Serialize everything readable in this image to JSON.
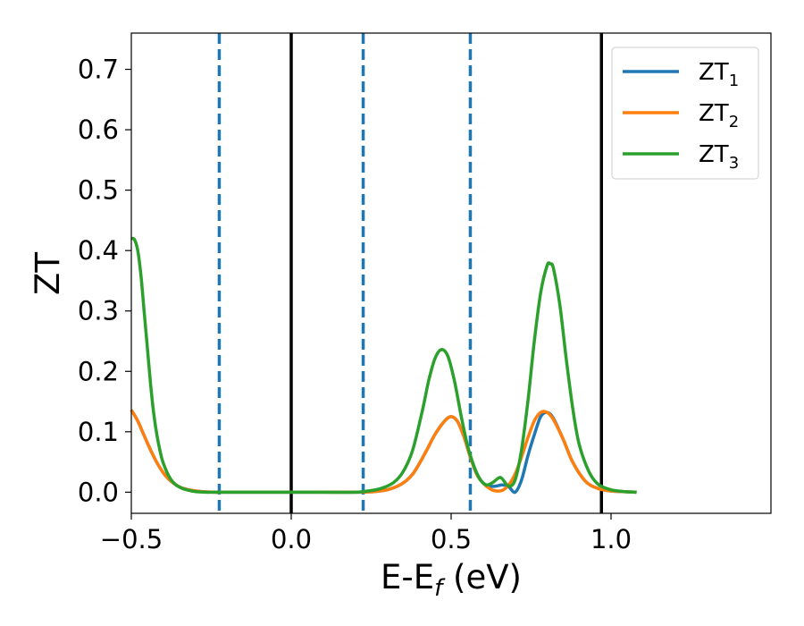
{
  "chart_data": {
    "type": "line",
    "xlabel": "E-E",
    "xlabel_sub": "f",
    "xlabel_unit": " (eV)",
    "ylabel": "ZT",
    "xlim": [
      -0.5,
      1.5
    ],
    "ylim": [
      -0.035,
      0.76
    ],
    "x_ticks": [
      {
        "value": -0.5,
        "label": "−0.5"
      },
      {
        "value": 0.0,
        "label": "0.0"
      },
      {
        "value": 0.5,
        "label": "0.5"
      },
      {
        "value": 1.0,
        "label": "1.0"
      }
    ],
    "y_ticks": [
      {
        "value": 0.0,
        "label": "0.0"
      },
      {
        "value": 0.1,
        "label": "0.1"
      },
      {
        "value": 0.2,
        "label": "0.2"
      },
      {
        "value": 0.3,
        "label": "0.3"
      },
      {
        "value": 0.4,
        "label": "0.4"
      },
      {
        "value": 0.5,
        "label": "0.5"
      },
      {
        "value": 0.6,
        "label": "0.6"
      },
      {
        "value": 0.7,
        "label": "0.7"
      }
    ],
    "grid": false,
    "legend_position": "top-right",
    "vertical_lines": [
      {
        "x": -0.225,
        "style": "dashed",
        "color": "#1f77b4"
      },
      {
        "x": 0.0,
        "style": "solid",
        "color": "#000000"
      },
      {
        "x": 0.225,
        "style": "dashed",
        "color": "#1f77b4"
      },
      {
        "x": 0.56,
        "style": "dashed",
        "color": "#1f77b4"
      },
      {
        "x": 0.97,
        "style": "solid",
        "color": "#000000"
      }
    ],
    "series": [
      {
        "name": "ZT",
        "sub": "1",
        "color": "#1f77b4",
        "x": [
          -0.5,
          -0.48,
          -0.46,
          -0.44,
          -0.42,
          -0.4,
          -0.38,
          -0.35,
          -0.32,
          -0.28,
          -0.24,
          -0.2,
          -0.1,
          0.0,
          0.1,
          0.2,
          0.26,
          0.3,
          0.34,
          0.38,
          0.42,
          0.45,
          0.48,
          0.5,
          0.52,
          0.54,
          0.56,
          0.58,
          0.6,
          0.62,
          0.64,
          0.66,
          0.68,
          0.7,
          0.72,
          0.74,
          0.76,
          0.78,
          0.8,
          0.82,
          0.85,
          0.88,
          0.92,
          0.96,
          1.0,
          1.04,
          1.08
        ],
        "y": [
          0.136,
          0.118,
          0.094,
          0.07,
          0.049,
          0.032,
          0.02,
          0.009,
          0.004,
          0.001,
          0.0,
          0.0,
          0.0,
          0.0,
          0.0,
          0.0,
          0.001,
          0.004,
          0.012,
          0.03,
          0.066,
          0.096,
          0.118,
          0.125,
          0.117,
          0.092,
          0.058,
          0.03,
          0.015,
          0.01,
          0.01,
          0.012,
          0.009,
          0.0,
          0.02,
          0.06,
          0.095,
          0.125,
          0.132,
          0.122,
          0.088,
          0.05,
          0.018,
          0.006,
          0.002,
          0.001,
          0.0
        ]
      },
      {
        "name": "ZT",
        "sub": "2",
        "color": "#ff7f0e",
        "x": [
          -0.5,
          -0.48,
          -0.46,
          -0.44,
          -0.42,
          -0.4,
          -0.38,
          -0.35,
          -0.32,
          -0.28,
          -0.24,
          -0.2,
          -0.1,
          0.0,
          0.1,
          0.2,
          0.26,
          0.3,
          0.34,
          0.38,
          0.42,
          0.45,
          0.48,
          0.5,
          0.52,
          0.54,
          0.56,
          0.58,
          0.6,
          0.62,
          0.64,
          0.66,
          0.68,
          0.7,
          0.72,
          0.74,
          0.76,
          0.78,
          0.8,
          0.82,
          0.85,
          0.88,
          0.92,
          0.96,
          1.0,
          1.04,
          1.08
        ],
        "y": [
          0.136,
          0.118,
          0.094,
          0.07,
          0.049,
          0.032,
          0.02,
          0.009,
          0.004,
          0.001,
          0.0,
          0.0,
          0.0,
          0.0,
          0.0,
          0.0,
          0.001,
          0.004,
          0.012,
          0.03,
          0.066,
          0.096,
          0.118,
          0.125,
          0.117,
          0.092,
          0.058,
          0.03,
          0.015,
          0.006,
          0.002,
          0.003,
          0.012,
          0.03,
          0.058,
          0.09,
          0.118,
          0.132,
          0.132,
          0.12,
          0.088,
          0.05,
          0.018,
          0.006,
          0.002,
          0.001,
          0.0
        ]
      },
      {
        "name": "ZT",
        "sub": "3",
        "color": "#2ca02c",
        "x": [
          -0.5,
          -0.49,
          -0.48,
          -0.47,
          -0.46,
          -0.45,
          -0.44,
          -0.43,
          -0.42,
          -0.41,
          -0.4,
          -0.38,
          -0.36,
          -0.34,
          -0.32,
          -0.3,
          -0.27,
          -0.24,
          -0.2,
          -0.1,
          0.0,
          0.1,
          0.2,
          0.24,
          0.28,
          0.32,
          0.35,
          0.38,
          0.41,
          0.43,
          0.45,
          0.47,
          0.49,
          0.51,
          0.53,
          0.55,
          0.57,
          0.59,
          0.61,
          0.63,
          0.65,
          0.66,
          0.68,
          0.7,
          0.72,
          0.74,
          0.76,
          0.78,
          0.8,
          0.81,
          0.82,
          0.84,
          0.86,
          0.88,
          0.9,
          0.93,
          0.96,
          1.0,
          1.04,
          1.08
        ],
        "y": [
          0.42,
          0.418,
          0.4,
          0.36,
          0.3,
          0.24,
          0.18,
          0.13,
          0.095,
          0.068,
          0.048,
          0.024,
          0.012,
          0.006,
          0.003,
          0.001,
          0.0,
          0.0,
          0.0,
          0.0,
          0.0,
          0.0,
          0.0,
          0.002,
          0.006,
          0.016,
          0.034,
          0.07,
          0.135,
          0.185,
          0.222,
          0.236,
          0.225,
          0.185,
          0.13,
          0.08,
          0.045,
          0.022,
          0.012,
          0.016,
          0.024,
          0.022,
          0.01,
          0.02,
          0.07,
          0.15,
          0.25,
          0.33,
          0.375,
          0.378,
          0.37,
          0.31,
          0.22,
          0.14,
          0.08,
          0.035,
          0.013,
          0.004,
          0.001,
          0.0
        ]
      }
    ]
  }
}
